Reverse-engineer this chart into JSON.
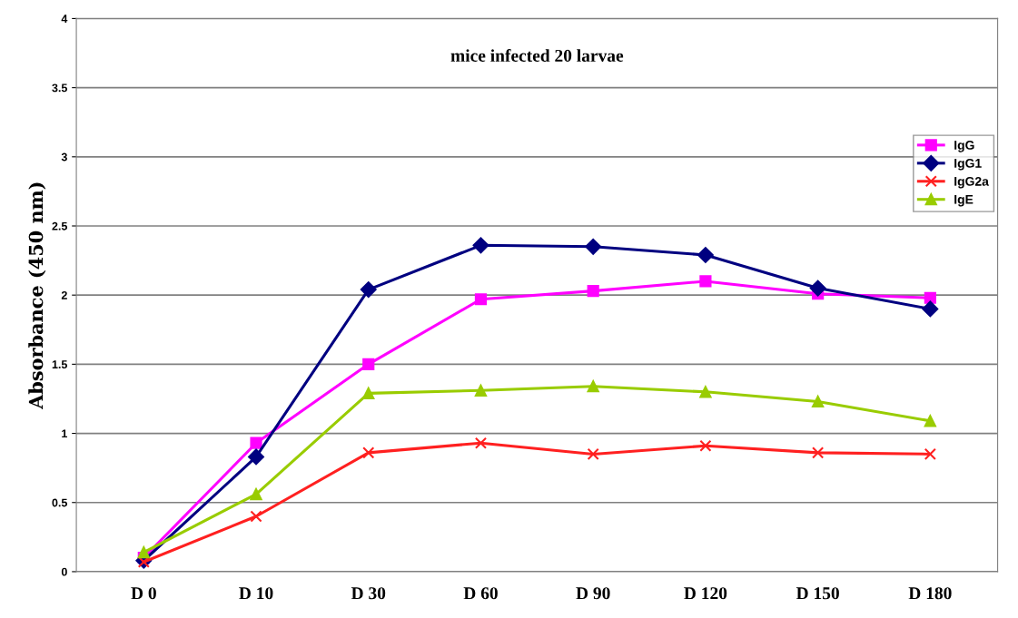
{
  "chart_data": {
    "type": "line",
    "title": "mice infected 20 larvae",
    "ylabel": "Absorbance (450 nm)",
    "categories": [
      "D 0",
      "D 10",
      "D 30",
      "D 60",
      "D 90",
      "D 120",
      "D 150",
      "D 180"
    ],
    "ylim": [
      0,
      4
    ],
    "yticks": [
      0,
      0.5,
      1,
      1.5,
      2,
      2.5,
      3,
      3.5,
      4
    ],
    "grid": "y",
    "legend": "right",
    "series": [
      {
        "name": "IgG",
        "color": "#ff00ff",
        "marker": "square",
        "values": [
          0.1,
          0.93,
          1.5,
          1.97,
          2.03,
          2.1,
          2.01,
          1.98
        ]
      },
      {
        "name": "IgG1",
        "color": "#000080",
        "marker": "diamond",
        "values": [
          0.08,
          0.83,
          2.04,
          2.36,
          2.35,
          2.29,
          2.05,
          1.9
        ]
      },
      {
        "name": "IgG2a",
        "color": "#ff2020",
        "marker": "cross",
        "values": [
          0.07,
          0.4,
          0.86,
          0.93,
          0.85,
          0.91,
          0.86,
          0.85
        ]
      },
      {
        "name": "IgE",
        "color": "#99cc00",
        "marker": "triangle",
        "values": [
          0.14,
          0.56,
          1.29,
          1.31,
          1.34,
          1.3,
          1.23,
          1.09
        ]
      }
    ]
  }
}
